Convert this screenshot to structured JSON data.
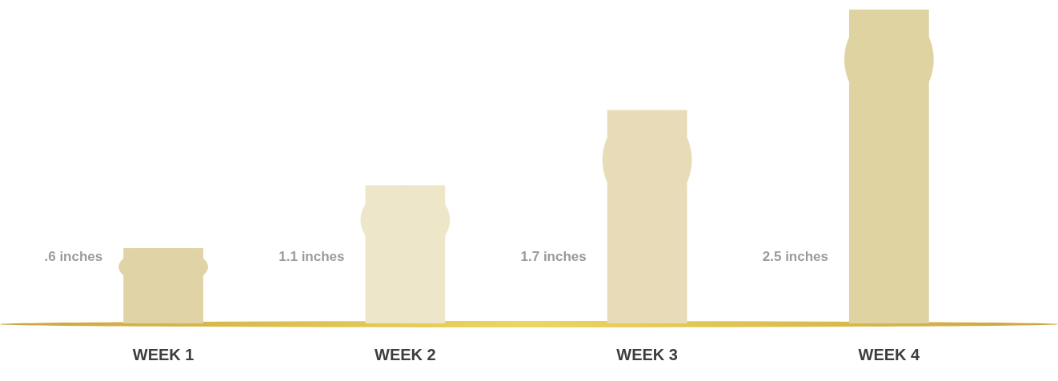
{
  "chart_data": {
    "type": "bar",
    "categories": [
      "WEEK 1",
      "WEEK 2",
      "WEEK 3",
      "WEEK 4"
    ],
    "values": [
      0.6,
      1.1,
      1.7,
      2.5
    ],
    "value_labels": [
      ".6 inches",
      "1.1 inches",
      "1.7 inches",
      "2.5 inches"
    ],
    "colors": [
      "#e0d3a6",
      "#eee6c9",
      "#e7dcb7",
      "#e0d3a2"
    ],
    "ylim": [
      0,
      2.5
    ],
    "yticks": [
      0,
      0.5,
      1,
      1.5,
      2,
      2.5
    ],
    "grid": false,
    "data_labels": true,
    "tick_labels": "x"
  }
}
